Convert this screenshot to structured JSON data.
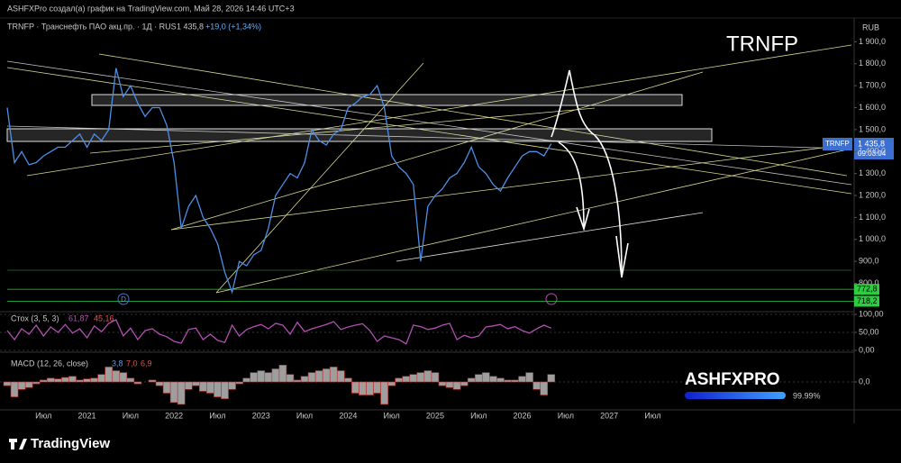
{
  "header": {
    "text": "ASHFXPro создал(а) график на TradingView.com, Май 28, 2026 14:46 UTC+3"
  },
  "chart_data": [
    {
      "type": "line",
      "title": "TRNFP",
      "symbol": "TRNFP · Транснефть ПАО акц.пр. · 1Д · RUS",
      "last": "1 435,8",
      "change": "+19,0 (+1,34%)",
      "currency": "RUB",
      "categories": [
        null,
        null,
        null,
        null,
        null,
        "Июл",
        null,
        null,
        null,
        null,
        null,
        "2021",
        null,
        null,
        null,
        null,
        null,
        "Июл",
        null,
        null,
        null,
        null,
        null,
        "2022",
        null,
        null,
        null,
        null,
        null,
        "Июл",
        null,
        null,
        null,
        null,
        null,
        "2023",
        null,
        null,
        null,
        null,
        null,
        "Июл",
        null,
        null,
        null,
        null,
        null,
        "2024",
        null,
        null,
        null,
        null,
        null,
        "Июл",
        null,
        null,
        null,
        null,
        null,
        "2025",
        null,
        null,
        null,
        null,
        null,
        "Июл",
        null,
        null,
        null,
        null,
        null,
        "2026",
        null,
        null,
        null,
        null,
        null,
        "Июл",
        null,
        null,
        null,
        null,
        null,
        "2027",
        null,
        null,
        null,
        null,
        null,
        "Июл"
      ],
      "series": [
        {
          "name": "TRNFP",
          "color": "#4d8fe6",
          "values": [
            1600,
            1350,
            1400,
            1340,
            1350,
            1380,
            1400,
            1420,
            1420,
            1450,
            1480,
            1420,
            1480,
            1450,
            1500,
            1780,
            1650,
            1700,
            1620,
            1560,
            1600,
            1600,
            1520,
            1350,
            1050,
            1150,
            1200,
            1100,
            1050,
            980,
            850,
            760,
            900,
            880,
            930,
            950,
            1050,
            1200,
            1250,
            1300,
            1280,
            1350,
            1500,
            1450,
            1430,
            1480,
            1500,
            1600,
            1620,
            1650,
            1660,
            1700,
            1600,
            1380,
            1330,
            1300,
            1250,
            900,
            1150,
            1200,
            1230,
            1280,
            1300,
            1350,
            1420,
            1330,
            1300,
            1250,
            1220,
            1280,
            1330,
            1380,
            1400,
            1400,
            1380,
            1435.8,
            null,
            null,
            null,
            null,
            null,
            null,
            null,
            null,
            null,
            null,
            null,
            null,
            null,
            null
          ]
        }
      ],
      "ylim": [
        675,
        2000
      ],
      "yticks": [
        {
          "value": 800,
          "label": "800,0"
        },
        {
          "value": 900,
          "label": "900,0"
        },
        {
          "value": 1000,
          "label": "1 000,0"
        },
        {
          "value": 1100,
          "label": "1 100,0"
        },
        {
          "value": 1200,
          "label": "1 200,0"
        },
        {
          "value": 1300,
          "label": "1 300,0"
        },
        {
          "value": 1400,
          "label": "1 400,0"
        },
        {
          "value": 1500,
          "label": "1 500,0"
        },
        {
          "value": 1600,
          "label": "1 600,0"
        },
        {
          "value": 1700,
          "label": "1 700,0"
        },
        {
          "value": 1800,
          "label": "1 800,0"
        },
        {
          "value": 1900,
          "label": "1 900,0"
        }
      ],
      "levels": [
        {
          "value": 772.8,
          "label": "772,8",
          "color": "#2ecc40"
        },
        {
          "value": 718.2,
          "label": "718,2",
          "color": "#2ecc40"
        }
      ],
      "price_tag": {
        "symbol": "TRNFP",
        "price": "1 435,8",
        "countdown": "09:03:04"
      },
      "markers": [
        "D"
      ]
    },
    {
      "type": "line",
      "title": "Стох (3, 5, 3)",
      "readings": [
        "61,87",
        "45,16"
      ],
      "color": "#b24fb3",
      "values": [
        55,
        30,
        60,
        45,
        70,
        40,
        65,
        50,
        72,
        48,
        60,
        35,
        68,
        52,
        75,
        85,
        40,
        62,
        30,
        55,
        60,
        45,
        38,
        25,
        20,
        58,
        62,
        30,
        45,
        28,
        22,
        70,
        40,
        58,
        66,
        72,
        60,
        75,
        70,
        45,
        78,
        52,
        60,
        66,
        72,
        80,
        58,
        65,
        70,
        74,
        55,
        25,
        40,
        35,
        30,
        18,
        70,
        66,
        58,
        62,
        70,
        75,
        30,
        42,
        35,
        40,
        65,
        68,
        72,
        60,
        66,
        55,
        48,
        60,
        70,
        61.87,
        null,
        null,
        null,
        null,
        null,
        null,
        null,
        null,
        null,
        null,
        null,
        null,
        null,
        null
      ],
      "ylim": [
        0,
        100
      ],
      "yticks": [
        {
          "value": 100,
          "label": "100,00"
        },
        {
          "value": 50,
          "label": "50,00"
        },
        {
          "value": 0,
          "label": "0,00"
        }
      ]
    },
    {
      "type": "bar",
      "title": "MACD (12, 26, close)",
      "readings": [
        "3,8",
        "7,0",
        "6,9"
      ],
      "color": "#9e9e9e",
      "values": [
        -10,
        -40,
        -20,
        -15,
        -5,
        5,
        10,
        8,
        12,
        15,
        5,
        8,
        10,
        20,
        40,
        30,
        25,
        10,
        -5,
        0,
        5,
        -10,
        -30,
        -55,
        -60,
        -20,
        -10,
        -25,
        -30,
        -40,
        -45,
        -20,
        -5,
        10,
        25,
        30,
        25,
        35,
        45,
        20,
        5,
        15,
        25,
        30,
        35,
        40,
        30,
        10,
        -30,
        -35,
        -35,
        -30,
        -60,
        -10,
        10,
        15,
        20,
        25,
        30,
        25,
        -10,
        -15,
        -20,
        -10,
        10,
        20,
        25,
        15,
        10,
        5,
        5,
        15,
        25,
        -20,
        -35,
        20,
        null,
        null,
        null,
        null,
        null,
        null,
        null,
        null,
        null,
        null,
        null,
        null,
        null,
        null
      ],
      "ylim": [
        -70,
        70
      ],
      "yticks": [
        {
          "value": 0,
          "label": "0,0"
        }
      ]
    }
  ],
  "watermark": {
    "brand": "ASHFXPRO",
    "percent": "99.99%"
  },
  "footer": {
    "logo": "TradingView"
  }
}
